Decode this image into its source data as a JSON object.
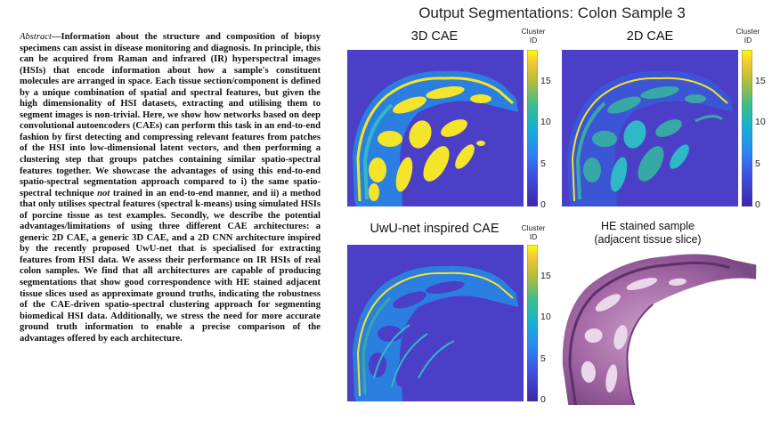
{
  "abstract": {
    "label": "Abstract",
    "dash": "—",
    "seg1": "Information about the structure and composition of biopsy specimens can assist in disease monitoring and diagnosis. In principle, this can be acquired from Raman and infrared (IR) hyperspectral images (HSIs) that encode information about how a sample's constituent molecules are arranged in space. Each tissue section/component is defined by a unique combination of spatial and spectral features, but given the high dimensionality of HSI datasets, extracting and utilising them to segment images is non-trivial. Here, we show how networks based on deep convolutional autoencoders (CAEs) can perform this task in an end-to-end fashion by first detecting and compressing relevant features from patches of the HSI into low-dimensional latent vectors, and then performing a clustering step that groups patches containing similar spatio-spectral features together. We showcase the advantages of using this end-to-end spatio-spectral segmentation approach compared to i) the same spatio-spectral technique ",
    "not": "not",
    "seg2": " trained in an end-to-end manner, and ii) a method that only utilises spectral features (spectral k-means) using simulated HSIs of porcine tissue as test examples. Secondly, we describe the potential advantages/limitations of using three different CAE architectures: a generic 2D CAE, a generic 3D CAE, and a 2D CNN architecture inspired by the recently proposed UwU-net that is specialised for extracting features from HSI data. We assess their performance on IR HSIs of real colon samples. We find that all architectures are capable of producing segmentations that show good correspondence with HE stained adjacent tissue slices used as approximate ground truths, indicating the robustness of the CAE-driven spatio-spectral clustering approach for segmenting biomedical HSI data. Additionally, we stress the need for more accurate ground truth information to enable a precise comparison of the advantages offered by each architecture."
  },
  "figure": {
    "title": "Output Segmentations: Colon Sample 3",
    "colorbar_label_line1": "Cluster",
    "colorbar_label_line2": "ID",
    "ticks": [
      "15",
      "10",
      "5",
      "0"
    ],
    "panels": {
      "cae3d": "3D CAE",
      "cae2d": "2D CAE",
      "uwu": "UwU-net inspired CAE",
      "he_line1": "HE stained sample",
      "he_line2": "(adjacent tissue slice)"
    },
    "colors": {
      "background": "#4a3fc6",
      "yellow": "#f5e52a",
      "cyan": "#2fb9c6",
      "teal": "#38a8a6",
      "blue": "#2b7fe0",
      "stain_purple": "#9b5e9b"
    }
  }
}
